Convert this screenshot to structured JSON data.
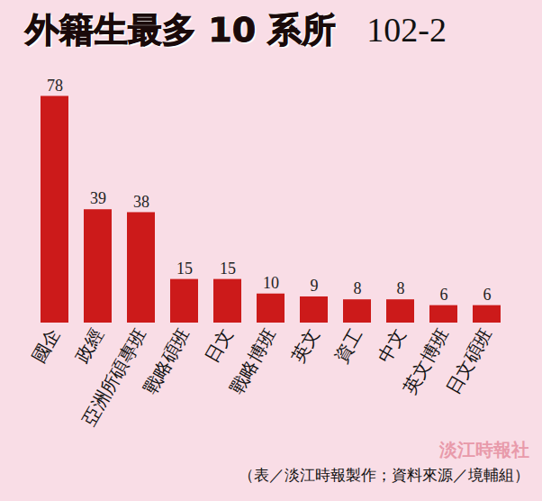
{
  "chart_data": {
    "type": "bar",
    "title": "外籍生最多 10 系所",
    "subtitle": "102-2",
    "caption": "（表／淡江時報製作；資料來源／境輔組）",
    "annotations": [
      "淡江時報社"
    ],
    "categories": [
      "國企",
      "政經",
      "亞洲所碩專班",
      "戰略碩班",
      "日文",
      "戰略博班",
      "英文",
      "資工",
      "中文",
      "英文博班",
      "日文碩班"
    ],
    "values": [
      78,
      39,
      38,
      15,
      15,
      10,
      9,
      8,
      8,
      6,
      6
    ],
    "color": "#cc1a1a",
    "ylim": [
      0,
      80
    ],
    "data_labels": true,
    "tick_labels": "x",
    "grid": false
  }
}
